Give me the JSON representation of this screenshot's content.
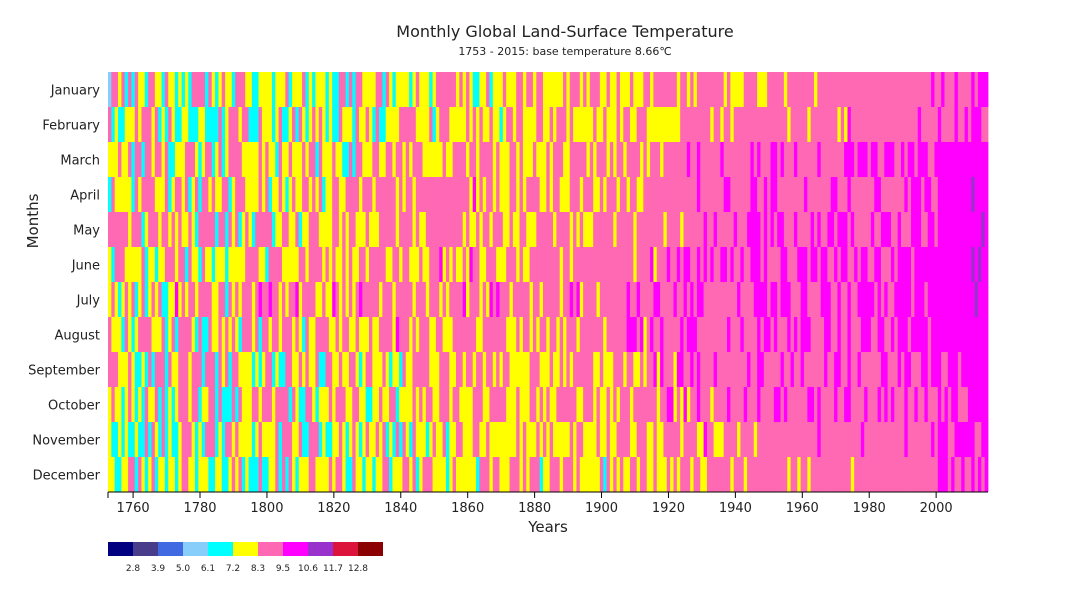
{
  "chart_data": {
    "type": "heatmap",
    "title": "Monthly Global Land-Surface Temperature",
    "subtitle": "1753 - 2015: base temperature 8.66℃",
    "xlabel": "Years",
    "ylabel": "Months",
    "x_range": [
      1753,
      2015
    ],
    "x_ticks": [
      "1760",
      "1780",
      "1800",
      "1820",
      "1840",
      "1860",
      "1880",
      "1900",
      "1920",
      "1940",
      "1960",
      "1980",
      "2000"
    ],
    "months": [
      "January",
      "February",
      "March",
      "April",
      "May",
      "June",
      "July",
      "August",
      "September",
      "October",
      "November",
      "December"
    ],
    "base_temperature": 8.66,
    "legend": {
      "thresholds": [
        2.8,
        3.9,
        5.0,
        6.1,
        7.2,
        8.3,
        9.5,
        10.6,
        11.7,
        12.8
      ],
      "threshold_labels": [
        "2.8",
        "3.9",
        "5.0",
        "6.1",
        "7.2",
        "8.3",
        "9.5",
        "10.6",
        "11.7",
        "12.8"
      ],
      "colors": [
        "#000080",
        "#483d8b",
        "#4169e1",
        "#87cefa",
        "#00ffff",
        "#ffff00",
        "#ff69b4",
        "#ff00ff",
        "#9932cc",
        "#dc143c",
        "#8b0000"
      ]
    }
  }
}
